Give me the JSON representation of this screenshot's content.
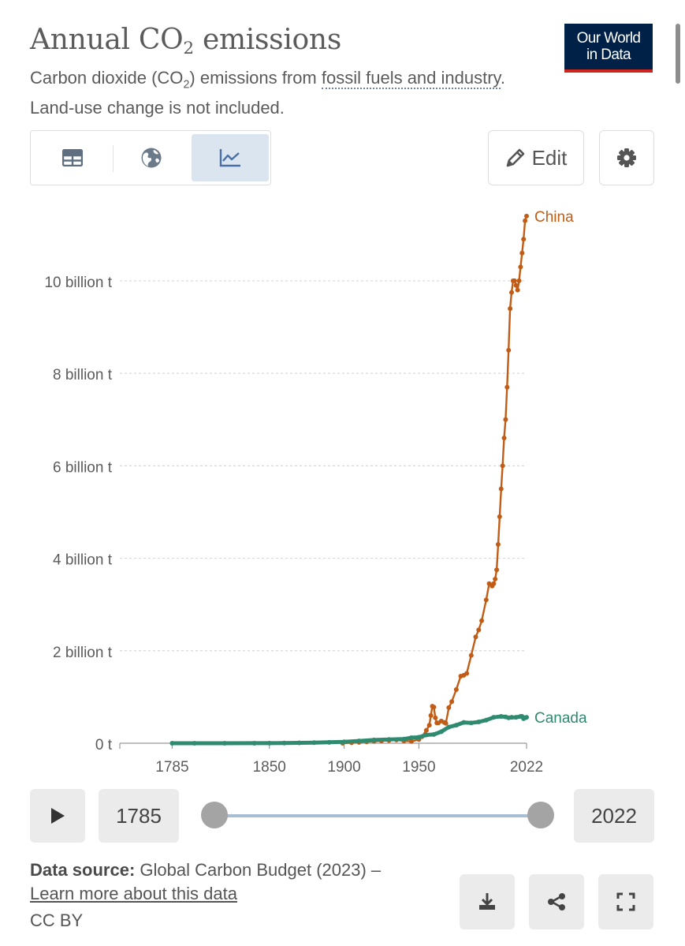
{
  "header": {
    "title_main": "Annual CO",
    "title_sub": "2",
    "title_tail": " emissions",
    "subtitle_pre": "Carbon dioxide (CO",
    "subtitle_sub": "2",
    "subtitle_mid": ") emissions from ",
    "subtitle_link": "fossil fuels and industry",
    "subtitle_post": ". Land-use change is not included.",
    "logo_line1": "Our World",
    "logo_line2": "in Data"
  },
  "toolbar": {
    "tabs": [
      {
        "icon": "table-icon"
      },
      {
        "icon": "globe-icon"
      },
      {
        "icon": "line-chart-icon",
        "active": true
      }
    ],
    "edit_label": "Edit",
    "edit_icon": "pencil-icon",
    "settings_icon": "gear-icon"
  },
  "chart_data": {
    "type": "line",
    "title": "",
    "xlabel": "",
    "ylabel": "",
    "xlim": [
      1750,
      2022
    ],
    "ylim": [
      0,
      11.5
    ],
    "x_ticks": [
      "1785",
      "1850",
      "1900",
      "1950",
      "2022"
    ],
    "y_ticks": [
      "0 t",
      "2 billion t",
      "4 billion t",
      "6 billion t",
      "8 billion t",
      "10 billion t"
    ],
    "grid": true,
    "legend": "inline labels at line ends",
    "series": [
      {
        "name": "China",
        "color": "#c15c16",
        "x": [
          1899,
          1905,
          1910,
          1915,
          1920,
          1925,
          1930,
          1935,
          1940,
          1945,
          1950,
          1952,
          1955,
          1957,
          1958,
          1959,
          1960,
          1961,
          1962,
          1963,
          1965,
          1967,
          1968,
          1970,
          1972,
          1975,
          1978,
          1980,
          1982,
          1985,
          1988,
          1990,
          1992,
          1995,
          1997,
          1999,
          2000,
          2001,
          2002,
          2003,
          2004,
          2005,
          2006,
          2007,
          2008,
          2009,
          2010,
          2011,
          2012,
          2013,
          2014,
          2015,
          2016,
          2017,
          2018,
          2019,
          2020,
          2021,
          2022
        ],
        "y": [
          0.0,
          0.01,
          0.02,
          0.03,
          0.04,
          0.05,
          0.06,
          0.07,
          0.05,
          0.04,
          0.08,
          0.14,
          0.28,
          0.39,
          0.6,
          0.8,
          0.78,
          0.55,
          0.44,
          0.44,
          0.48,
          0.45,
          0.43,
          0.77,
          0.9,
          1.16,
          1.45,
          1.47,
          1.51,
          1.9,
          2.3,
          2.45,
          2.65,
          3.1,
          3.45,
          3.4,
          3.45,
          3.55,
          3.75,
          4.3,
          4.9,
          5.5,
          6.0,
          6.6,
          7.0,
          7.7,
          8.5,
          9.4,
          9.75,
          10.0,
          10.0,
          9.9,
          9.8,
          10.0,
          10.3,
          10.6,
          10.9,
          11.3,
          11.4
        ]
      },
      {
        "name": "Canada",
        "color": "#2e8b6f",
        "x": [
          1785,
          1800,
          1820,
          1840,
          1850,
          1860,
          1870,
          1880,
          1890,
          1900,
          1910,
          1920,
          1930,
          1940,
          1945,
          1950,
          1955,
          1960,
          1965,
          1970,
          1975,
          1980,
          1985,
          1990,
          1995,
          2000,
          2005,
          2008,
          2010,
          2012,
          2015,
          2018,
          2019,
          2020,
          2021,
          2022
        ],
        "y": [
          0.0,
          0.0,
          0.0,
          0.001,
          0.002,
          0.004,
          0.008,
          0.012,
          0.02,
          0.03,
          0.05,
          0.07,
          0.08,
          0.09,
          0.12,
          0.13,
          0.18,
          0.19,
          0.25,
          0.35,
          0.39,
          0.45,
          0.44,
          0.46,
          0.5,
          0.56,
          0.58,
          0.57,
          0.55,
          0.56,
          0.56,
          0.58,
          0.58,
          0.53,
          0.55,
          0.56
        ]
      }
    ]
  },
  "timeline": {
    "play_icon": "play-icon",
    "start_year": "1785",
    "end_year": "2022",
    "range": [
      0,
      1
    ]
  },
  "footer": {
    "source_label": "Data source:",
    "source_text": " Global Carbon Budget (2023) –",
    "learn_more": "Learn more about this data",
    "license": "CC BY",
    "download_icon": "download-icon",
    "share_icon": "share-icon",
    "fullscreen_icon": "fullscreen-icon"
  }
}
